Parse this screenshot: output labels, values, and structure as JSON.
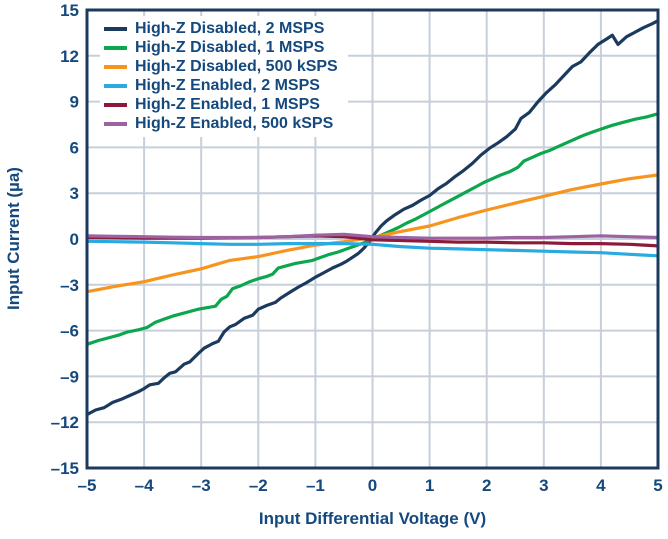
{
  "chart_data": {
    "type": "line",
    "title": "",
    "xlabel": "Input Differential Voltage (V)",
    "ylabel": "Input Current (µa)",
    "xlim": [
      -5,
      5
    ],
    "ylim": [
      -15,
      15
    ],
    "x_ticks": [
      -5,
      -4,
      -3,
      -2,
      -1,
      0,
      1,
      2,
      3,
      4,
      5
    ],
    "x_tick_labels": [
      "–5",
      "–4",
      "–3",
      "–2",
      "–1",
      "0",
      "1",
      "2",
      "3",
      "4",
      "5"
    ],
    "y_ticks": [
      15,
      12,
      9,
      6,
      3,
      0,
      -3,
      -6,
      -9,
      -12,
      -15
    ],
    "y_tick_labels": [
      "15",
      "12",
      "9",
      "6",
      "3",
      "0",
      "–3",
      "–6",
      "–9",
      "–12",
      "–15"
    ],
    "grid": true,
    "legend_position": "top-left",
    "colors": {
      "frame": "#1B3A5E",
      "grid": "#C6CFDA",
      "text": "#15497E",
      "background": "#FFFFFF"
    },
    "series": [
      {
        "name": "High-Z Disabled, 2 MSPS",
        "color": "#1B3A5E",
        "points": [
          [
            -5,
            -11.5
          ],
          [
            -4.85,
            -11.2
          ],
          [
            -4.7,
            -11.05
          ],
          [
            -4.55,
            -10.7
          ],
          [
            -4.4,
            -10.5
          ],
          [
            -4.25,
            -10.25
          ],
          [
            -4.1,
            -10.0
          ],
          [
            -4,
            -9.8
          ],
          [
            -3.9,
            -9.55
          ],
          [
            -3.75,
            -9.45
          ],
          [
            -3.65,
            -9.1
          ],
          [
            -3.55,
            -8.8
          ],
          [
            -3.45,
            -8.7
          ],
          [
            -3.3,
            -8.2
          ],
          [
            -3.2,
            -8.05
          ],
          [
            -3.05,
            -7.5
          ],
          [
            -2.95,
            -7.15
          ],
          [
            -2.8,
            -6.85
          ],
          [
            -2.7,
            -6.7
          ],
          [
            -2.6,
            -6.1
          ],
          [
            -2.5,
            -5.75
          ],
          [
            -2.4,
            -5.6
          ],
          [
            -2.25,
            -5.2
          ],
          [
            -2.1,
            -5.0
          ],
          [
            -2,
            -4.6
          ],
          [
            -1.85,
            -4.35
          ],
          [
            -1.7,
            -4.15
          ],
          [
            -1.6,
            -3.85
          ],
          [
            -1.45,
            -3.5
          ],
          [
            -1.3,
            -3.15
          ],
          [
            -1.15,
            -2.85
          ],
          [
            -1,
            -2.5
          ],
          [
            -0.85,
            -2.2
          ],
          [
            -0.7,
            -1.9
          ],
          [
            -0.55,
            -1.65
          ],
          [
            -0.45,
            -1.45
          ],
          [
            -0.35,
            -1.2
          ],
          [
            -0.25,
            -0.95
          ],
          [
            -0.15,
            -0.6
          ],
          [
            -0.05,
            -0.15
          ],
          [
            0.05,
            0.4
          ],
          [
            0.15,
            0.85
          ],
          [
            0.25,
            1.2
          ],
          [
            0.4,
            1.6
          ],
          [
            0.55,
            1.95
          ],
          [
            0.7,
            2.2
          ],
          [
            0.85,
            2.55
          ],
          [
            1,
            2.85
          ],
          [
            1.15,
            3.3
          ],
          [
            1.3,
            3.65
          ],
          [
            1.45,
            4.1
          ],
          [
            1.6,
            4.5
          ],
          [
            1.75,
            4.95
          ],
          [
            1.9,
            5.5
          ],
          [
            2.05,
            5.95
          ],
          [
            2.2,
            6.3
          ],
          [
            2.35,
            6.7
          ],
          [
            2.5,
            7.2
          ],
          [
            2.6,
            7.9
          ],
          [
            2.75,
            8.3
          ],
          [
            2.9,
            9.0
          ],
          [
            3.05,
            9.6
          ],
          [
            3.2,
            10.1
          ],
          [
            3.35,
            10.7
          ],
          [
            3.5,
            11.3
          ],
          [
            3.65,
            11.6
          ],
          [
            3.8,
            12.2
          ],
          [
            3.95,
            12.75
          ],
          [
            4.1,
            13.1
          ],
          [
            4.2,
            13.35
          ],
          [
            4.3,
            12.75
          ],
          [
            4.45,
            13.25
          ],
          [
            4.6,
            13.55
          ],
          [
            4.75,
            13.85
          ],
          [
            4.9,
            14.1
          ],
          [
            5,
            14.3
          ]
        ]
      },
      {
        "name": "High-Z Disabled, 1 MSPS",
        "color": "#0CA64D",
        "points": [
          [
            -5,
            -6.9
          ],
          [
            -4.8,
            -6.65
          ],
          [
            -4.6,
            -6.45
          ],
          [
            -4.45,
            -6.3
          ],
          [
            -4.3,
            -6.1
          ],
          [
            -4.1,
            -5.95
          ],
          [
            -3.95,
            -5.8
          ],
          [
            -3.8,
            -5.45
          ],
          [
            -3.65,
            -5.25
          ],
          [
            -3.5,
            -5.05
          ],
          [
            -3.35,
            -4.9
          ],
          [
            -3.2,
            -4.75
          ],
          [
            -3.05,
            -4.6
          ],
          [
            -2.9,
            -4.5
          ],
          [
            -2.75,
            -4.4
          ],
          [
            -2.65,
            -3.95
          ],
          [
            -2.55,
            -3.75
          ],
          [
            -2.45,
            -3.25
          ],
          [
            -2.3,
            -3.05
          ],
          [
            -2.15,
            -2.8
          ],
          [
            -2,
            -2.6
          ],
          [
            -1.85,
            -2.45
          ],
          [
            -1.75,
            -2.3
          ],
          [
            -1.65,
            -1.9
          ],
          [
            -1.5,
            -1.75
          ],
          [
            -1.35,
            -1.6
          ],
          [
            -1.2,
            -1.5
          ],
          [
            -1.05,
            -1.4
          ],
          [
            -0.9,
            -1.2
          ],
          [
            -0.75,
            -1.0
          ],
          [
            -0.6,
            -0.85
          ],
          [
            -0.45,
            -0.65
          ],
          [
            -0.3,
            -0.45
          ],
          [
            -0.15,
            -0.25
          ],
          [
            0,
            0
          ],
          [
            0.15,
            0.25
          ],
          [
            0.3,
            0.5
          ],
          [
            0.45,
            0.75
          ],
          [
            0.6,
            1.05
          ],
          [
            0.75,
            1.3
          ],
          [
            0.9,
            1.6
          ],
          [
            1.05,
            1.9
          ],
          [
            1.2,
            2.2
          ],
          [
            1.35,
            2.5
          ],
          [
            1.5,
            2.8
          ],
          [
            1.65,
            3.1
          ],
          [
            1.8,
            3.4
          ],
          [
            1.95,
            3.7
          ],
          [
            2.1,
            3.95
          ],
          [
            2.25,
            4.2
          ],
          [
            2.4,
            4.4
          ],
          [
            2.55,
            4.7
          ],
          [
            2.65,
            5.1
          ],
          [
            2.8,
            5.35
          ],
          [
            2.95,
            5.6
          ],
          [
            3.1,
            5.8
          ],
          [
            3.25,
            6.05
          ],
          [
            3.4,
            6.3
          ],
          [
            3.55,
            6.55
          ],
          [
            3.7,
            6.8
          ],
          [
            3.85,
            7.0
          ],
          [
            4,
            7.2
          ],
          [
            4.2,
            7.45
          ],
          [
            4.4,
            7.65
          ],
          [
            4.6,
            7.85
          ],
          [
            4.8,
            8.0
          ],
          [
            5,
            8.2
          ]
        ]
      },
      {
        "name": "High-Z Disabled, 500 kSPS",
        "color": "#F7941E",
        "points": [
          [
            -5,
            -3.45
          ],
          [
            -4.5,
            -3.1
          ],
          [
            -4,
            -2.8
          ],
          [
            -3.5,
            -2.35
          ],
          [
            -3,
            -1.95
          ],
          [
            -2.5,
            -1.4
          ],
          [
            -2,
            -1.15
          ],
          [
            -1.5,
            -0.75
          ],
          [
            -1,
            -0.4
          ],
          [
            -0.5,
            -0.18
          ],
          [
            0,
            0.1
          ],
          [
            0.5,
            0.5
          ],
          [
            1,
            0.85
          ],
          [
            1.5,
            1.4
          ],
          [
            2,
            1.9
          ],
          [
            2.5,
            2.35
          ],
          [
            3,
            2.8
          ],
          [
            3.5,
            3.25
          ],
          [
            4,
            3.6
          ],
          [
            4.5,
            3.95
          ],
          [
            5,
            4.2
          ]
        ]
      },
      {
        "name": "High-Z Enabled, 2 MSPS",
        "color": "#29AAE1",
        "points": [
          [
            -5,
            -0.15
          ],
          [
            -4.5,
            -0.18
          ],
          [
            -4,
            -0.2
          ],
          [
            -3.5,
            -0.25
          ],
          [
            -3,
            -0.3
          ],
          [
            -2.5,
            -0.35
          ],
          [
            -2,
            -0.35
          ],
          [
            -1.5,
            -0.3
          ],
          [
            -1,
            -0.3
          ],
          [
            -0.5,
            -0.3
          ],
          [
            0,
            -0.35
          ],
          [
            0.5,
            -0.5
          ],
          [
            1,
            -0.6
          ],
          [
            1.5,
            -0.65
          ],
          [
            2,
            -0.7
          ],
          [
            2.5,
            -0.75
          ],
          [
            3,
            -0.8
          ],
          [
            3.5,
            -0.85
          ],
          [
            4,
            -0.9
          ],
          [
            4.5,
            -1.0
          ],
          [
            5,
            -1.1
          ]
        ]
      },
      {
        "name": "High-Z Enabled, 1 MSPS",
        "color": "#8C1B3B",
        "points": [
          [
            -5,
            0.1
          ],
          [
            -4.5,
            0.08
          ],
          [
            -4,
            0.05
          ],
          [
            -3.5,
            0.05
          ],
          [
            -3,
            0.05
          ],
          [
            -2.5,
            0.08
          ],
          [
            -2,
            0.1
          ],
          [
            -1.5,
            0.15
          ],
          [
            -1,
            0.2
          ],
          [
            -0.5,
            0.15
          ],
          [
            0,
            -0.05
          ],
          [
            0.5,
            -0.1
          ],
          [
            1,
            -0.15
          ],
          [
            1.5,
            -0.2
          ],
          [
            2,
            -0.2
          ],
          [
            2.5,
            -0.25
          ],
          [
            3,
            -0.25
          ],
          [
            3.5,
            -0.3
          ],
          [
            4,
            -0.3
          ],
          [
            4.5,
            -0.35
          ],
          [
            5,
            -0.45
          ]
        ]
      },
      {
        "name": "High-Z Enabled, 500 kSPS",
        "color": "#9C63A3",
        "points": [
          [
            -5,
            0.2
          ],
          [
            -4.5,
            0.18
          ],
          [
            -4,
            0.15
          ],
          [
            -3.5,
            0.12
          ],
          [
            -3,
            0.1
          ],
          [
            -2.5,
            0.1
          ],
          [
            -2,
            0.1
          ],
          [
            -1.5,
            0.15
          ],
          [
            -1,
            0.25
          ],
          [
            -0.5,
            0.3
          ],
          [
            0,
            0.15
          ],
          [
            0.5,
            0.1
          ],
          [
            1,
            0.05
          ],
          [
            1.5,
            0.05
          ],
          [
            2,
            0.05
          ],
          [
            2.5,
            0.1
          ],
          [
            3,
            0.1
          ],
          [
            3.5,
            0.15
          ],
          [
            4,
            0.2
          ],
          [
            4.5,
            0.15
          ],
          [
            5,
            0.1
          ]
        ]
      }
    ]
  }
}
